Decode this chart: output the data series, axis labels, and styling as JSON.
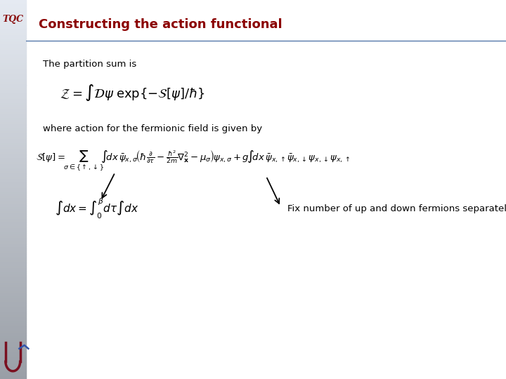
{
  "title": "Constructing the action functional",
  "title_color": "#8B0000",
  "title_fontsize": 13,
  "bg_color": "#ffffff",
  "header_line_color": "#5577aa",
  "text1": "The partition sum is",
  "text2": "where action for the fermionic field is given by",
  "annotation": "Fix number of up and down fermions separately",
  "sidebar_left_color": "#9aabb8",
  "sidebar_right_color": "#d0d8de",
  "toc_bg_color": "#8a9baa",
  "toc_text_color": "#8B0000"
}
